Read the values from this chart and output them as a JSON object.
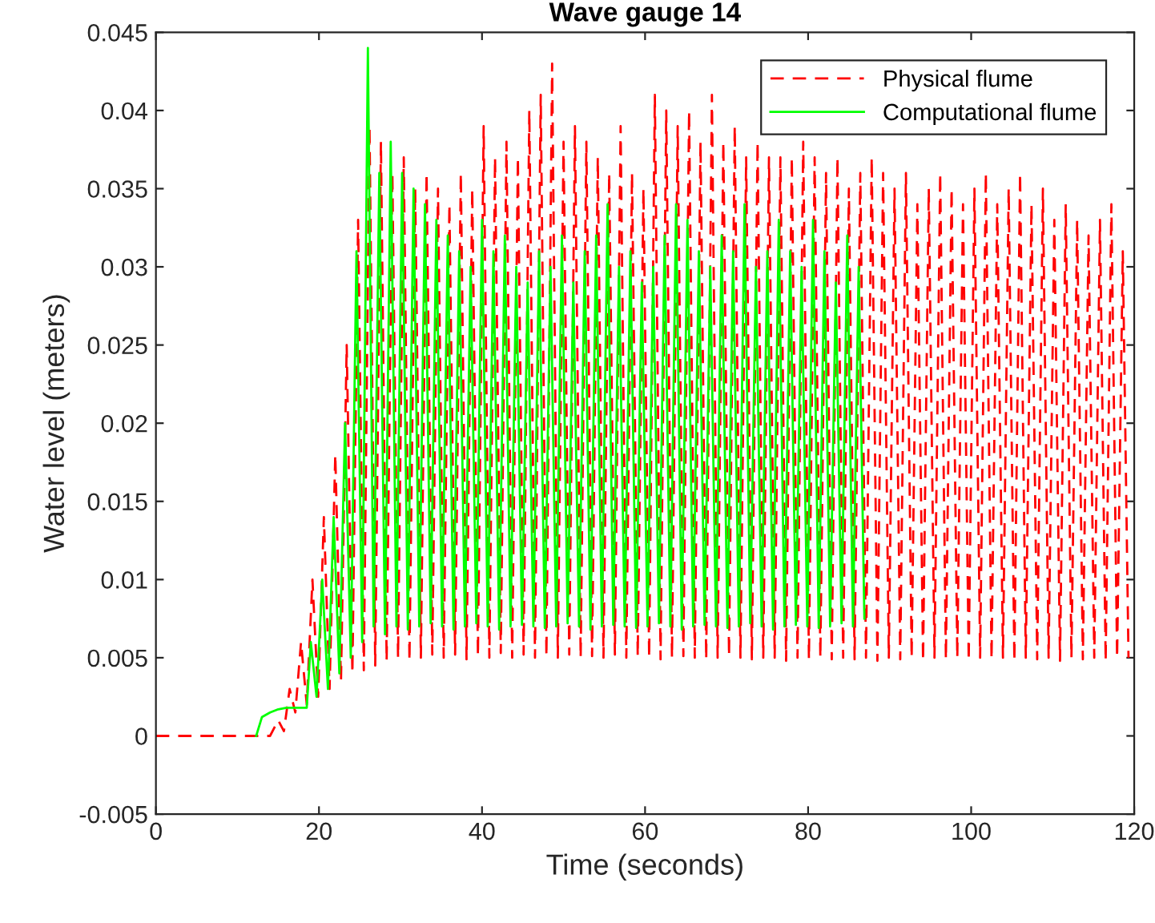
{
  "chart_data": {
    "type": "line",
    "title": "Wave gauge 14",
    "xlabel": "Time (seconds)",
    "ylabel": "Water level (meters)",
    "xlim": [
      0,
      120
    ],
    "xticks": [
      0,
      20,
      40,
      60,
      80,
      100,
      120
    ],
    "ylim": [
      -0.005,
      0.045
    ],
    "yticks": [
      -0.005,
      0,
      0.005,
      0.01,
      0.015,
      0.02,
      0.025,
      0.03,
      0.035,
      0.04,
      0.045
    ],
    "grid": false,
    "legend": "top right",
    "marker": "none",
    "series": [
      {
        "name": "Physical flume",
        "color": "#ff0000",
        "line_style": "dashed",
        "x": [
          0,
          14,
          15.0,
          15.7,
          16.4,
          17.1,
          17.8,
          18.5,
          19.2,
          19.9,
          20.6,
          21.3,
          22.0,
          22.7,
          23.4,
          24.1,
          24.8,
          25.5,
          26.2,
          26.9,
          27.6,
          28.3,
          29.0,
          29.7,
          30.4,
          31.1,
          31.8,
          32.5,
          33.2,
          33.9,
          34.6,
          35.3,
          36.0,
          36.7,
          37.4,
          38.1,
          38.8,
          39.5,
          40.2,
          40.9,
          41.6,
          42.3,
          43.0,
          43.7,
          44.4,
          45.1,
          45.8,
          46.5,
          47.2,
          47.9,
          48.6,
          49.3,
          50.0,
          50.7,
          51.4,
          52.1,
          52.8,
          53.5,
          54.2,
          54.9,
          55.6,
          56.3,
          57.0,
          57.7,
          58.4,
          59.1,
          59.8,
          60.5,
          61.2,
          61.9,
          62.6,
          63.3,
          64.0,
          64.7,
          65.4,
          66.1,
          66.8,
          67.5,
          68.2,
          68.9,
          69.6,
          70.3,
          71.0,
          71.7,
          72.4,
          73.1,
          73.8,
          74.5,
          75.2,
          75.9,
          76.6,
          77.3,
          78.0,
          78.7,
          79.4,
          80.1,
          80.8,
          81.5,
          82.2,
          82.9,
          83.6,
          84.3,
          85.0,
          85.7,
          86.4,
          87.1,
          87.8,
          88.5,
          89.2,
          89.9,
          90.6,
          91.3,
          92.0,
          92.7,
          93.4,
          94.1,
          94.8,
          95.5,
          96.2,
          96.9,
          97.6,
          98.3,
          99.0,
          99.7,
          100.4,
          101.1,
          101.8,
          102.5,
          103.2,
          103.9,
          104.6,
          105.3,
          106.0,
          106.7,
          107.4,
          108.1,
          108.8,
          109.5,
          110.2,
          110.9,
          111.6,
          112.3,
          113.0,
          113.7,
          114.4,
          115.1,
          115.8,
          116.5,
          117.2,
          117.9,
          118.6,
          119.3
        ],
        "values": [
          0,
          0,
          0.001,
          0.0003,
          0.003,
          0.0015,
          0.006,
          0.002,
          0.01,
          0.0025,
          0.014,
          0.003,
          0.018,
          0.0035,
          0.025,
          0.004,
          0.033,
          0.0042,
          0.039,
          0.0045,
          0.038,
          0.0048,
          0.036,
          0.005,
          0.037,
          0.0048,
          0.035,
          0.005,
          0.036,
          0.0052,
          0.035,
          0.005,
          0.034,
          0.0052,
          0.036,
          0.0049,
          0.035,
          0.0051,
          0.039,
          0.005,
          0.037,
          0.0053,
          0.038,
          0.005,
          0.037,
          0.0052,
          0.04,
          0.005,
          0.041,
          0.0051,
          0.043,
          0.005,
          0.038,
          0.0052,
          0.039,
          0.005,
          0.038,
          0.0051,
          0.037,
          0.005,
          0.036,
          0.0052,
          0.039,
          0.005,
          0.036,
          0.0051,
          0.035,
          0.005,
          0.041,
          0.0049,
          0.04,
          0.005,
          0.039,
          0.0051,
          0.04,
          0.005,
          0.038,
          0.0049,
          0.041,
          0.005,
          0.038,
          0.0051,
          0.039,
          0.005,
          0.037,
          0.0049,
          0.038,
          0.005,
          0.037,
          0.005,
          0.037,
          0.0048,
          0.037,
          0.005,
          0.038,
          0.0049,
          0.037,
          0.005,
          0.036,
          0.0049,
          0.037,
          0.005,
          0.035,
          0.0049,
          0.036,
          0.005,
          0.037,
          0.0048,
          0.036,
          0.005,
          0.035,
          0.0049,
          0.036,
          0.005,
          0.034,
          0.0048,
          0.035,
          0.005,
          0.036,
          0.0049,
          0.035,
          0.005,
          0.034,
          0.0048,
          0.035,
          0.005,
          0.036,
          0.0049,
          0.034,
          0.005,
          0.035,
          0.0048,
          0.036,
          0.005,
          0.034,
          0.0049,
          0.035,
          0.005,
          0.033,
          0.0048,
          0.034,
          0.005,
          0.033,
          0.0049,
          0.032,
          0.005,
          0.033,
          0.0048,
          0.034,
          0.005,
          0.031,
          0.005
        ]
      },
      {
        "name": "Computational flume",
        "color": "#00ff00",
        "line_style": "solid",
        "x": [
          12.3,
          13.0,
          14.0,
          15.0,
          16.0,
          17.0,
          18.5,
          19.0,
          19.7,
          20.4,
          21.1,
          21.8,
          22.5,
          23.2,
          23.9,
          24.6,
          25.3,
          26.0,
          26.7,
          27.4,
          28.1,
          28.8,
          29.5,
          30.2,
          30.9,
          31.6,
          32.3,
          33.0,
          33.7,
          34.4,
          35.1,
          35.8,
          36.5,
          37.2,
          37.9,
          38.6,
          39.3,
          40.0,
          40.7,
          41.4,
          42.1,
          42.8,
          43.5,
          44.2,
          44.9,
          45.6,
          46.3,
          47.0,
          47.7,
          48.4,
          49.1,
          49.8,
          50.5,
          51.2,
          51.9,
          52.6,
          53.3,
          54.0,
          54.7,
          55.4,
          56.1,
          56.8,
          57.5,
          58.2,
          58.9,
          59.6,
          60.3,
          61.0,
          61.7,
          62.4,
          63.1,
          63.8,
          64.5,
          65.2,
          65.9,
          66.6,
          67.3,
          68.0,
          68.7,
          69.4,
          70.1,
          70.8,
          71.5,
          72.2,
          72.9,
          73.6,
          74.3,
          75.0,
          75.7,
          76.4,
          77.1,
          77.8,
          78.5,
          79.2,
          79.9,
          80.6,
          81.3,
          82.0,
          82.7,
          83.4,
          84.1,
          84.8,
          85.5,
          86.2,
          86.9
        ],
        "values": [
          0,
          0.0012,
          0.0015,
          0.0017,
          0.0018,
          0.0018,
          0.0018,
          0.006,
          0.0025,
          0.01,
          0.003,
          0.014,
          0.004,
          0.02,
          0.005,
          0.031,
          0.006,
          0.044,
          0.007,
          0.036,
          0.0065,
          0.038,
          0.007,
          0.036,
          0.0068,
          0.035,
          0.007,
          0.034,
          0.0072,
          0.033,
          0.007,
          0.032,
          0.0068,
          0.031,
          0.007,
          0.03,
          0.0072,
          0.033,
          0.007,
          0.031,
          0.0068,
          0.032,
          0.007,
          0.03,
          0.0071,
          0.029,
          0.007,
          0.031,
          0.0069,
          0.03,
          0.007,
          0.032,
          0.0072,
          0.029,
          0.007,
          0.031,
          0.0068,
          0.032,
          0.007,
          0.034,
          0.0071,
          0.03,
          0.007,
          0.031,
          0.0069,
          0.029,
          0.007,
          0.03,
          0.0072,
          0.032,
          0.007,
          0.034,
          0.0068,
          0.033,
          0.007,
          0.031,
          0.0071,
          0.03,
          0.007,
          0.032,
          0.0069,
          0.031,
          0.007,
          0.034,
          0.0072,
          0.03,
          0.007,
          0.031,
          0.0068,
          0.033,
          0.007,
          0.031,
          0.0071,
          0.03,
          0.007,
          0.033,
          0.0069,
          0.031,
          0.007,
          0.029,
          0.0072,
          0.032,
          0.007,
          0.03,
          0.0075
        ]
      }
    ]
  }
}
